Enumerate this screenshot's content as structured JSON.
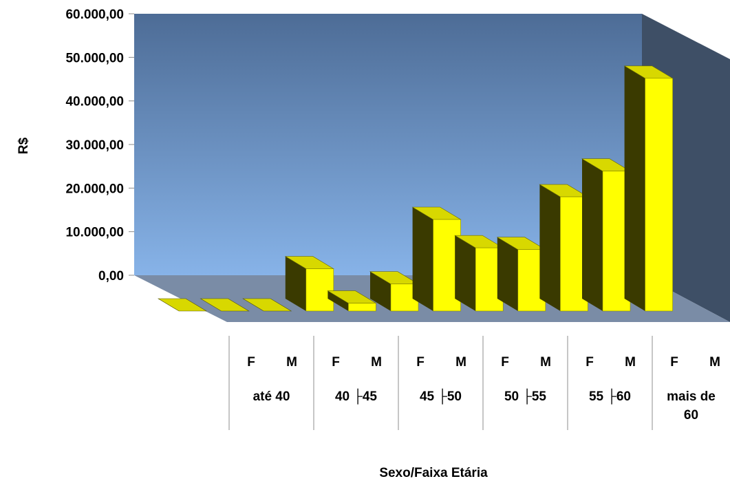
{
  "chart_data": {
    "type": "bar",
    "title": "",
    "ylabel": "R$",
    "xlabel": "Sexo/Faixa Etária",
    "ylim": [
      0,
      60000
    ],
    "yticks": [
      "0,00",
      "10.000,00",
      "20.000,00",
      "30.000,00",
      "40.000,00",
      "50.000,00",
      "60.000,00"
    ],
    "groups": [
      {
        "label": "até 40"
      },
      {
        "label": "40 ├45"
      },
      {
        "label": "45 ├50"
      },
      {
        "label": "50 ├55"
      },
      {
        "label": "55 ├60"
      },
      {
        "label": "mais de 60"
      }
    ],
    "bars": [
      {
        "sex": "F",
        "value": 0
      },
      {
        "sex": "M",
        "value": 0
      },
      {
        "sex": "F",
        "value": 0
      },
      {
        "sex": "M",
        "value": 9700
      },
      {
        "sex": "F",
        "value": 1800
      },
      {
        "sex": "M",
        "value": 6200
      },
      {
        "sex": "F",
        "value": 21000
      },
      {
        "sex": "M",
        "value": 14500
      },
      {
        "sex": "F",
        "value": 14100
      },
      {
        "sex": "M",
        "value": 26200
      },
      {
        "sex": "F",
        "value": 32100
      },
      {
        "sex": "M",
        "value": 53400
      }
    ],
    "grid": false,
    "legend": "none",
    "colors": {
      "bar_front": "#ffff00",
      "bar_side": "#3a3a00",
      "bar_top": "#d8d800",
      "wall_top": "#4d6c96",
      "wall_bottom": "#87b3e8",
      "side_wall": "#3e4f66",
      "floor": "#7a8ca6"
    }
  }
}
